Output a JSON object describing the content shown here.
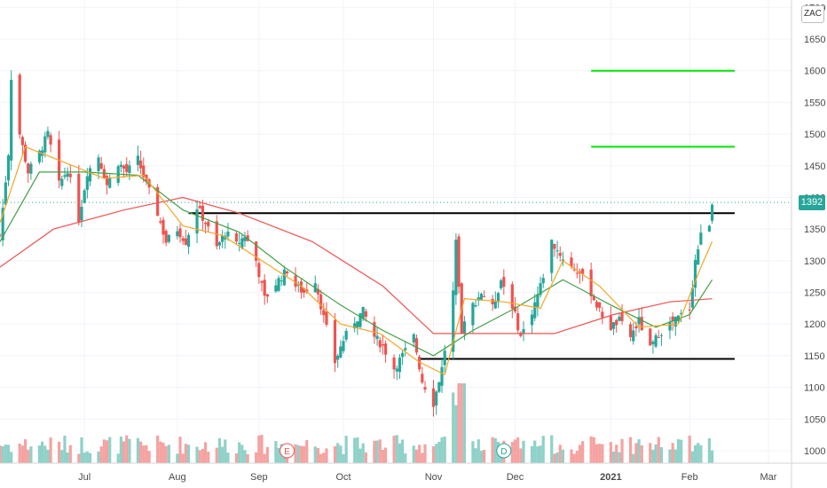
{
  "symbol": "ZAC",
  "last_price_label": "1392",
  "colors": {
    "up": "#26a69a",
    "down": "#ef5350",
    "vol_up": "#8fd1c8",
    "vol_down": "#f4a3a1",
    "ma_fast": "#f5a623",
    "ma_mid": "#43a047",
    "ma_slow": "#ef5350",
    "resistance": "#000000",
    "support": "#000000",
    "target": "#00e600"
  },
  "chart_data": {
    "type": "candlestick",
    "title": "",
    "xlabel": "",
    "ylabel": "",
    "y_ticks": [
      1000,
      1050,
      1100,
      1150,
      1200,
      1250,
      1300,
      1350,
      1400,
      1450,
      1500,
      1550,
      1600,
      1650,
      1700
    ],
    "x_ticks": [
      {
        "label": "Jul",
        "bold": false,
        "date": "2020-07-01"
      },
      {
        "label": "Aug",
        "bold": false,
        "date": "2020-08-03"
      },
      {
        "label": "Sep",
        "bold": false,
        "date": "2020-09-01"
      },
      {
        "label": "Oct",
        "bold": false,
        "date": "2020-10-01"
      },
      {
        "label": "Nov",
        "bold": false,
        "date": "2020-11-02"
      },
      {
        "label": "Dec",
        "bold": false,
        "date": "2020-12-01"
      },
      {
        "label": "2021",
        "bold": true,
        "date": "2021-01-04"
      },
      {
        "label": "Feb",
        "bold": false,
        "date": "2021-02-01"
      },
      {
        "label": "Mar",
        "bold": false,
        "date": "2021-03-01"
      }
    ],
    "event_markers": [
      {
        "label": "E",
        "date": "2020-09-11"
      },
      {
        "label": "D",
        "date": "2020-11-27"
      }
    ],
    "horizontal_levels": [
      {
        "name": "resistance",
        "value": 1375,
        "from": "2020-08-07",
        "to": "2021-02-17"
      },
      {
        "name": "support",
        "value": 1145,
        "from": "2020-10-28",
        "to": "2021-02-17"
      },
      {
        "name": "target-1",
        "value": 1480,
        "from": "2020-12-28",
        "to": "2021-02-17"
      },
      {
        "name": "target-2",
        "value": 1600,
        "from": "2020-12-28",
        "to": "2021-02-17"
      }
    ],
    "last_price": 1392,
    "close_path": [
      [
        "2020-06-01",
        1340
      ],
      [
        "2020-06-04",
        1470
      ],
      [
        "2020-06-05",
        1590
      ],
      [
        "2020-06-08",
        1500
      ],
      [
        "2020-06-11",
        1440
      ],
      [
        "2020-06-15",
        1470
      ],
      [
        "2020-06-18",
        1500
      ],
      [
        "2020-06-22",
        1420
      ],
      [
        "2020-06-25",
        1445
      ],
      [
        "2020-06-29",
        1365
      ],
      [
        "2020-07-02",
        1440
      ],
      [
        "2020-07-06",
        1465
      ],
      [
        "2020-07-09",
        1420
      ],
      [
        "2020-07-13",
        1455
      ],
      [
        "2020-07-16",
        1440
      ],
      [
        "2020-07-20",
        1460
      ],
      [
        "2020-07-23",
        1420
      ],
      [
        "2020-07-27",
        1375
      ],
      [
        "2020-07-30",
        1330
      ],
      [
        "2020-08-03",
        1350
      ],
      [
        "2020-08-06",
        1330
      ],
      [
        "2020-08-10",
        1385
      ],
      [
        "2020-08-13",
        1360
      ],
      [
        "2020-08-17",
        1320
      ],
      [
        "2020-08-20",
        1345
      ],
      [
        "2020-08-24",
        1325
      ],
      [
        "2020-08-27",
        1340
      ],
      [
        "2020-08-31",
        1300
      ],
      [
        "2020-09-03",
        1240
      ],
      [
        "2020-09-08",
        1270
      ],
      [
        "2020-09-11",
        1285
      ],
      [
        "2020-09-14",
        1260
      ],
      [
        "2020-09-17",
        1250
      ],
      [
        "2020-09-21",
        1270
      ],
      [
        "2020-09-24",
        1210
      ],
      [
        "2020-09-28",
        1140
      ],
      [
        "2020-10-01",
        1175
      ],
      [
        "2020-10-05",
        1205
      ],
      [
        "2020-10-08",
        1220
      ],
      [
        "2020-10-12",
        1180
      ],
      [
        "2020-10-15",
        1165
      ],
      [
        "2020-10-19",
        1130
      ],
      [
        "2020-10-22",
        1150
      ],
      [
        "2020-10-26",
        1180
      ],
      [
        "2020-10-29",
        1110
      ],
      [
        "2020-11-02",
        1075
      ],
      [
        "2020-11-05",
        1130
      ],
      [
        "2020-11-09",
        1250
      ],
      [
        "2020-11-10",
        1340
      ],
      [
        "2020-11-12",
        1190
      ],
      [
        "2020-11-16",
        1230
      ],
      [
        "2020-11-19",
        1250
      ],
      [
        "2020-11-23",
        1225
      ],
      [
        "2020-11-26",
        1270
      ],
      [
        "2020-11-30",
        1230
      ],
      [
        "2020-12-03",
        1180
      ],
      [
        "2020-12-07",
        1220
      ],
      [
        "2020-12-10",
        1260
      ],
      [
        "2020-12-14",
        1330
      ],
      [
        "2020-12-17",
        1310
      ],
      [
        "2020-12-21",
        1290
      ],
      [
        "2020-12-24",
        1280
      ],
      [
        "2020-12-28",
        1250
      ],
      [
        "2020-12-31",
        1220
      ],
      [
        "2021-01-04",
        1195
      ],
      [
        "2021-01-07",
        1205
      ],
      [
        "2021-01-11",
        1180
      ],
      [
        "2021-01-14",
        1205
      ],
      [
        "2021-01-18",
        1160
      ],
      [
        "2021-01-21",
        1185
      ],
      [
        "2021-01-25",
        1200
      ],
      [
        "2021-01-28",
        1210
      ],
      [
        "2021-02-01",
        1225
      ],
      [
        "2021-02-03",
        1300
      ],
      [
        "2021-02-05",
        1340
      ],
      [
        "2021-02-08",
        1360
      ],
      [
        "2021-02-09",
        1392
      ]
    ],
    "ma_fast_path": [
      [
        "2020-06-01",
        1360
      ],
      [
        "2020-06-10",
        1480
      ],
      [
        "2020-06-24",
        1455
      ],
      [
        "2020-07-08",
        1430
      ],
      [
        "2020-07-22",
        1435
      ],
      [
        "2020-08-05",
        1355
      ],
      [
        "2020-08-19",
        1340
      ],
      [
        "2020-09-02",
        1300
      ],
      [
        "2020-09-16",
        1260
      ],
      [
        "2020-09-30",
        1200
      ],
      [
        "2020-10-14",
        1185
      ],
      [
        "2020-10-28",
        1140
      ],
      [
        "2020-11-06",
        1120
      ],
      [
        "2020-11-13",
        1240
      ],
      [
        "2020-11-27",
        1235
      ],
      [
        "2020-12-10",
        1225
      ],
      [
        "2020-12-18",
        1300
      ],
      [
        "2020-12-31",
        1260
      ],
      [
        "2021-01-14",
        1195
      ],
      [
        "2021-01-28",
        1200
      ],
      [
        "2021-02-05",
        1290
      ],
      [
        "2021-02-09",
        1330
      ]
    ],
    "ma_mid_path": [
      [
        "2020-06-01",
        1330
      ],
      [
        "2020-06-15",
        1440
      ],
      [
        "2020-07-01",
        1440
      ],
      [
        "2020-07-20",
        1435
      ],
      [
        "2020-08-05",
        1380
      ],
      [
        "2020-08-25",
        1345
      ],
      [
        "2020-09-10",
        1290
      ],
      [
        "2020-09-30",
        1230
      ],
      [
        "2020-10-15",
        1190
      ],
      [
        "2020-11-02",
        1150
      ],
      [
        "2020-11-16",
        1190
      ],
      [
        "2020-12-01",
        1225
      ],
      [
        "2020-12-18",
        1270
      ],
      [
        "2021-01-04",
        1230
      ],
      [
        "2021-01-20",
        1195
      ],
      [
        "2021-02-01",
        1215
      ],
      [
        "2021-02-09",
        1270
      ]
    ],
    "ma_slow_path": [
      [
        "2020-06-01",
        1290
      ],
      [
        "2020-06-20",
        1350
      ],
      [
        "2020-07-15",
        1380
      ],
      [
        "2020-08-05",
        1400
      ],
      [
        "2020-08-25",
        1375
      ],
      [
        "2020-09-20",
        1330
      ],
      [
        "2020-10-15",
        1260
      ],
      [
        "2020-11-02",
        1185
      ],
      [
        "2020-11-16",
        1185
      ],
      [
        "2020-12-15",
        1185
      ],
      [
        "2021-01-05",
        1215
      ],
      [
        "2021-01-25",
        1235
      ],
      [
        "2021-02-09",
        1240
      ]
    ]
  }
}
